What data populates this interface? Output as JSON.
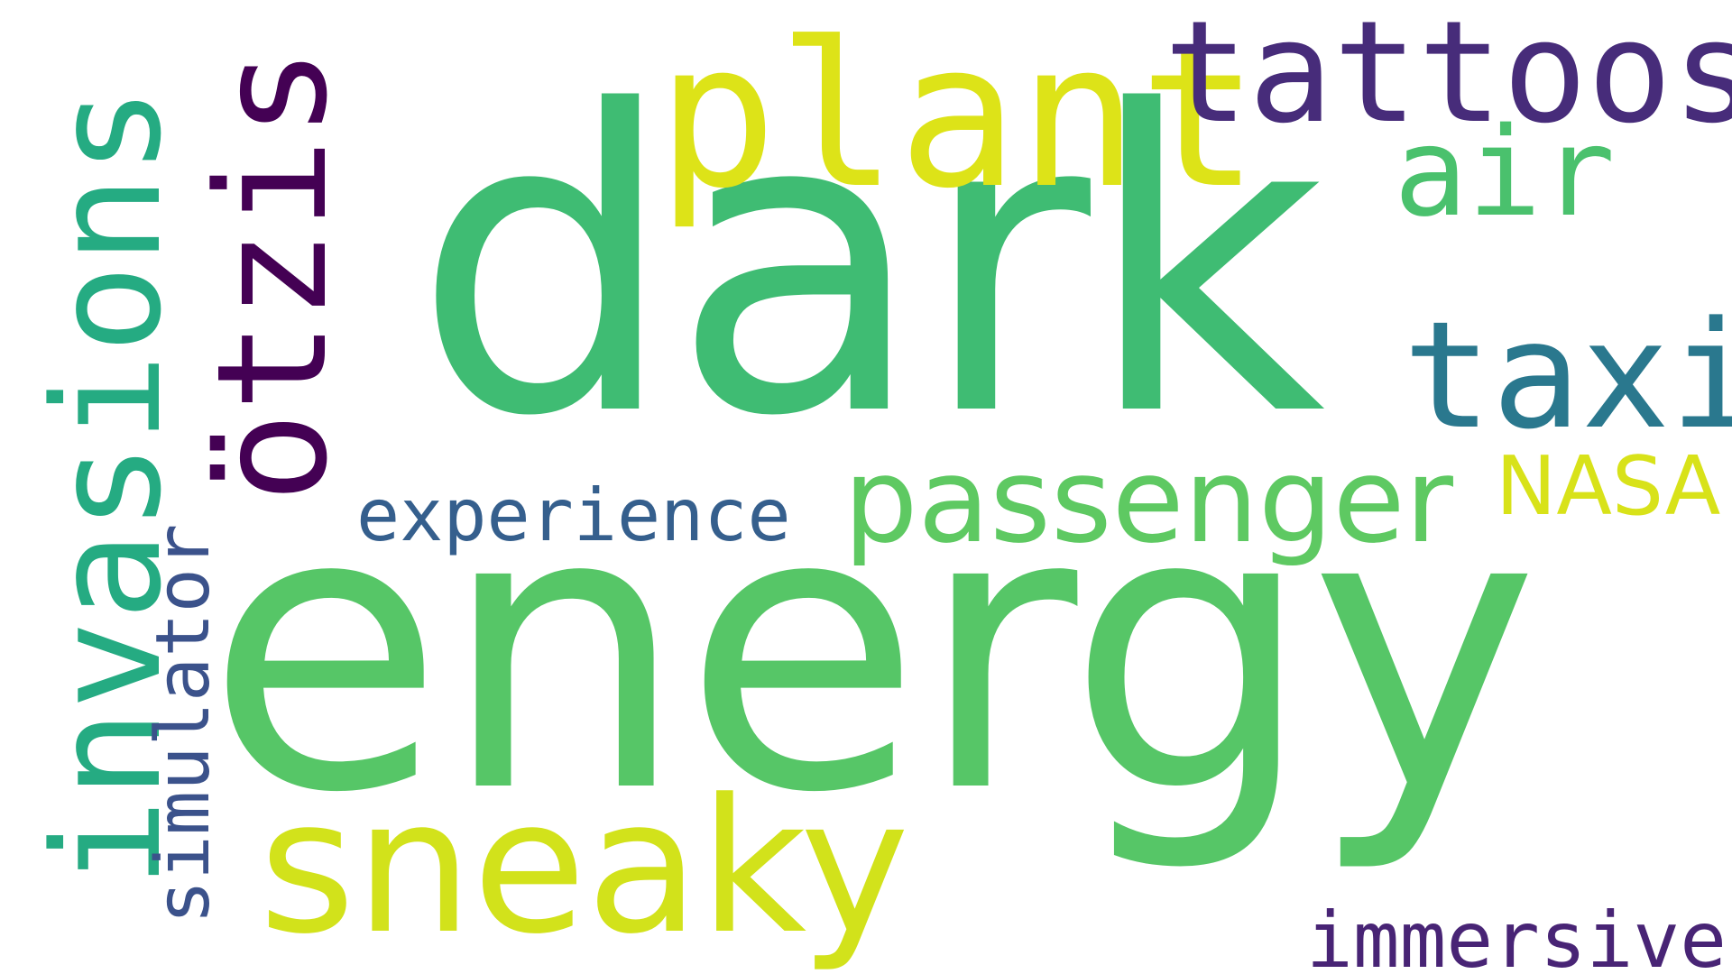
{
  "words": {
    "dark": {
      "text": "dark",
      "color": "#3fbc73"
    },
    "energy": {
      "text": "energy",
      "color": "#56c667"
    },
    "invasions": {
      "text": "invasions",
      "color": "#25ab82"
    },
    "otzis": {
      "text": "ötzis",
      "color": "#440154"
    },
    "plant": {
      "text": "plant",
      "color": "#dde318"
    },
    "tattoos": {
      "text": "tattoos",
      "color": "#472c7a"
    },
    "air": {
      "text": "air",
      "color": "#4ac16d"
    },
    "taxi": {
      "text": "taxi",
      "color": "#2a788e"
    },
    "passenger": {
      "text": "passenger",
      "color": "#5ec962"
    },
    "nasa": {
      "text": "NASA",
      "color": "#d8e219"
    },
    "experience": {
      "text": "experience",
      "color": "#355f8d"
    },
    "simulator": {
      "text": "simulator",
      "color": "#3b528b"
    },
    "sneaky": {
      "text": "sneaky",
      "color": "#d2e21b"
    },
    "immersive": {
      "text": "immersive",
      "color": "#482475"
    }
  }
}
